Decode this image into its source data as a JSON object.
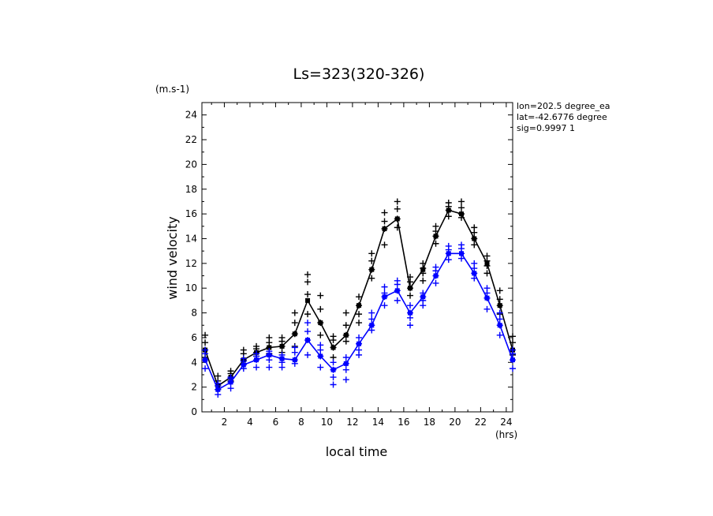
{
  "chart_data": {
    "type": "line",
    "title": "Ls=323(320-326)",
    "ylabel": "wind velocity",
    "xlabel": "local time",
    "yunit": "(m.s-1)",
    "xunit": "(hrs)",
    "info": [
      "lon=202.5 degree_ea",
      "lat=-42.6776 degree",
      "sig=0.9997 1"
    ],
    "xlim": [
      0.25,
      24.5
    ],
    "ylim": [
      0,
      25
    ],
    "xticks": [
      2,
      4,
      6,
      8,
      10,
      12,
      14,
      16,
      18,
      20,
      22,
      24
    ],
    "yticks": [
      0,
      2,
      4,
      6,
      8,
      10,
      12,
      14,
      16,
      18,
      20,
      22,
      24
    ],
    "colors": {
      "black_series": "#000000",
      "blue_series": "#0000ff"
    },
    "series": [
      {
        "color": "#000000",
        "x": [
          0.5,
          1.5,
          2.5,
          3.5,
          4.5,
          5.5,
          6.5,
          7.5,
          8.5,
          9.5,
          10.5,
          11.5,
          12.5,
          13.5,
          14.5,
          15.5,
          16.5,
          17.5,
          18.5,
          19.5,
          20.5,
          21.5,
          22.5,
          23.5,
          24.5
        ],
        "values": [
          5.0,
          2.1,
          2.8,
          4.2,
          4.8,
          5.2,
          5.3,
          6.3,
          9.0,
          7.2,
          5.2,
          6.2,
          8.6,
          11.5,
          14.8,
          15.6,
          10.0,
          11.5,
          14.2,
          16.3,
          16.0,
          14.0,
          12.0,
          8.6,
          5.0
        ],
        "samples": [
          [
            4.4,
            5.0,
            5.6,
            6.2
          ],
          [
            1.8,
            2.1,
            2.5,
            2.9
          ],
          [
            2.5,
            2.8,
            3.1,
            3.3
          ],
          [
            3.9,
            4.2,
            4.7,
            5.0
          ],
          [
            4.5,
            4.8,
            5.1,
            5.3
          ],
          [
            4.7,
            5.2,
            5.6,
            6.0
          ],
          [
            4.8,
            5.3,
            5.7,
            6.0
          ],
          [
            5.3,
            6.3,
            7.2,
            8.0
          ],
          [
            7.9,
            9.5,
            10.5,
            11.1
          ],
          [
            6.2,
            7.2,
            8.3,
            9.4
          ],
          [
            4.4,
            5.2,
            5.8,
            6.1
          ],
          [
            5.7,
            6.2,
            7.0,
            8.0
          ],
          [
            7.2,
            7.9,
            8.6,
            9.3
          ],
          [
            10.8,
            11.5,
            12.2,
            12.8
          ],
          [
            13.5,
            14.8,
            15.4,
            16.1
          ],
          [
            14.9,
            15.6,
            16.4,
            17.0
          ],
          [
            9.4,
            10.0,
            10.5,
            10.9
          ],
          [
            10.6,
            11.2,
            11.6,
            12.0
          ],
          [
            13.6,
            14.2,
            14.6,
            15.0
          ],
          [
            15.8,
            16.3,
            16.6,
            16.9
          ],
          [
            15.7,
            16.0,
            16.5,
            17.0
          ],
          [
            13.5,
            14.0,
            14.5,
            14.9
          ],
          [
            11.2,
            11.8,
            12.2,
            12.6
          ],
          [
            7.9,
            8.6,
            9.1,
            9.8
          ],
          [
            4.6,
            5.0,
            5.6,
            6.1
          ]
        ]
      },
      {
        "color": "#0000ff",
        "x": [
          0.5,
          1.5,
          2.5,
          3.5,
          4.5,
          5.5,
          6.5,
          7.5,
          8.5,
          9.5,
          10.5,
          11.5,
          12.5,
          13.5,
          14.5,
          15.5,
          16.5,
          17.5,
          18.5,
          19.5,
          20.5,
          21.5,
          22.5,
          23.5,
          24.5
        ],
        "values": [
          4.2,
          1.8,
          2.4,
          3.8,
          4.2,
          4.6,
          4.3,
          4.2,
          5.8,
          4.5,
          3.4,
          3.9,
          5.5,
          7.0,
          9.3,
          9.8,
          8.0,
          9.3,
          11.0,
          12.8,
          12.8,
          11.2,
          9.2,
          7.0,
          4.2
        ],
        "samples": [
          [
            3.5,
            4.2,
            4.7,
            5.0
          ],
          [
            1.4,
            1.8,
            2.1,
            2.3
          ],
          [
            1.9,
            2.4,
            2.7,
            2.8
          ],
          [
            3.5,
            3.8,
            4.1,
            4.3
          ],
          [
            3.6,
            4.2,
            4.5,
            4.7
          ],
          [
            3.6,
            4.2,
            4.6,
            4.9
          ],
          [
            3.6,
            4.0,
            4.3,
            4.6
          ],
          [
            3.9,
            4.2,
            4.8,
            5.2
          ],
          [
            4.6,
            5.8,
            6.5,
            7.2
          ],
          [
            3.6,
            4.5,
            5.0,
            5.4
          ],
          [
            2.2,
            2.8,
            3.4,
            4.0
          ],
          [
            2.6,
            3.4,
            3.9,
            4.4
          ],
          [
            4.6,
            5.0,
            5.5,
            6.0
          ],
          [
            6.6,
            7.0,
            7.5,
            8.0
          ],
          [
            8.6,
            9.3,
            9.6,
            10.1
          ],
          [
            9.0,
            9.8,
            10.3,
            10.6
          ],
          [
            7.0,
            7.6,
            8.0,
            8.6
          ],
          [
            8.6,
            9.0,
            9.3,
            9.6
          ],
          [
            10.4,
            11.0,
            11.4,
            11.7
          ],
          [
            12.3,
            12.8,
            13.1,
            13.4
          ],
          [
            12.4,
            12.8,
            13.2,
            13.5
          ],
          [
            10.8,
            11.2,
            11.6,
            12.0
          ],
          [
            8.3,
            9.2,
            9.6,
            10.0
          ],
          [
            6.2,
            7.0,
            7.5,
            8.0
          ],
          [
            3.5,
            4.2,
            4.7,
            5.0
          ]
        ]
      }
    ]
  }
}
